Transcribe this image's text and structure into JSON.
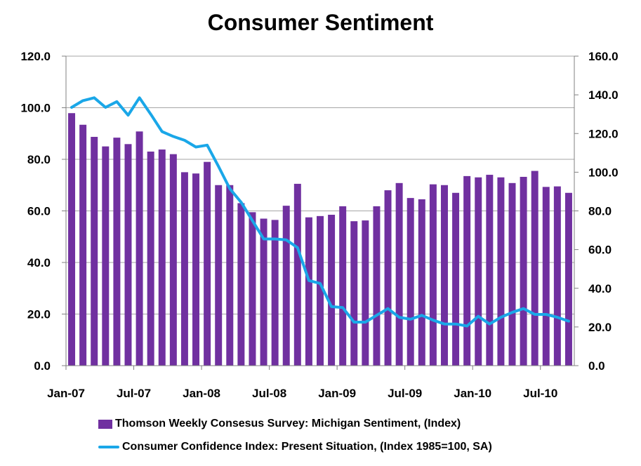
{
  "chart_data": {
    "type": "bar+line",
    "title": "Consumer Sentiment",
    "x_tick_labels": [
      "Jan-07",
      "Jul-07",
      "Jan-08",
      "Jul-08",
      "Jan-09",
      "Jul-09",
      "Jan-10",
      "Jul-10"
    ],
    "y_left": {
      "ylim": [
        0,
        120
      ],
      "ticks": [
        "0.0",
        "20.0",
        "40.0",
        "60.0",
        "80.0",
        "100.0",
        "120.0"
      ]
    },
    "y_right": {
      "ylim": [
        0,
        160
      ],
      "ticks": [
        "0.0",
        "20.0",
        "40.0",
        "60.0",
        "80.0",
        "100.0",
        "120.0",
        "140.0",
        "160.0"
      ]
    },
    "grid": true,
    "legend_position": "bottom",
    "months": [
      "Jan-07",
      "Feb-07",
      "Mar-07",
      "Apr-07",
      "May-07",
      "Jun-07",
      "Jul-07",
      "Aug-07",
      "Sep-07",
      "Oct-07",
      "Nov-07",
      "Dec-07",
      "Jan-08",
      "Feb-08",
      "Mar-08",
      "Apr-08",
      "May-08",
      "Jun-08",
      "Jul-08",
      "Aug-08",
      "Sep-08",
      "Oct-08",
      "Nov-08",
      "Dec-08",
      "Jan-09",
      "Feb-09",
      "Mar-09",
      "Apr-09",
      "May-09",
      "Jun-09",
      "Jul-09",
      "Aug-09",
      "Sep-09",
      "Oct-09",
      "Nov-09",
      "Dec-09",
      "Jan-10",
      "Feb-10",
      "Mar-10",
      "Apr-10",
      "May-10",
      "Jun-10",
      "Jul-10",
      "Aug-10",
      "Sep-10"
    ],
    "series": [
      {
        "name": "Thomson Weekly Consesus Survey: Michigan Sentiment, (Index)",
        "type": "bar",
        "axis": "left",
        "color": "#7030a0",
        "values": [
          97.9,
          93.4,
          88.7,
          85.0,
          88.4,
          85.9,
          90.8,
          83.0,
          83.8,
          82.0,
          75.0,
          74.5,
          79.0,
          70.0,
          70.0,
          63.0,
          59.5,
          57.0,
          56.5,
          62.0,
          70.5,
          57.5,
          58.0,
          58.5,
          61.8,
          56.0,
          56.3,
          61.8,
          68.0,
          70.8,
          65.0,
          64.5,
          70.3,
          70.0,
          67.0,
          73.5,
          73.0,
          74.0,
          73.0,
          70.8,
          73.2,
          75.5,
          69.3,
          69.5,
          67.0
        ]
      },
      {
        "name": "Consumer Confidence Index: Present Situation, (Index 1985=100, SA)",
        "type": "line",
        "axis": "right",
        "color": "#1aa7e8",
        "values": [
          133.5,
          137.0,
          138.5,
          133.5,
          136.5,
          129.5,
          138.5,
          130.0,
          121.0,
          118.5,
          116.5,
          113.0,
          114.0,
          103.0,
          91.5,
          84.5,
          75.0,
          65.5,
          65.5,
          65.0,
          61.0,
          44.0,
          42.5,
          30.5,
          30.0,
          22.5,
          22.5,
          26.0,
          29.5,
          25.0,
          24.0,
          26.0,
          23.5,
          21.5,
          21.5,
          20.5,
          25.5,
          21.5,
          25.0,
          27.5,
          29.5,
          26.5,
          26.5,
          25.0,
          23.0
        ]
      }
    ]
  }
}
